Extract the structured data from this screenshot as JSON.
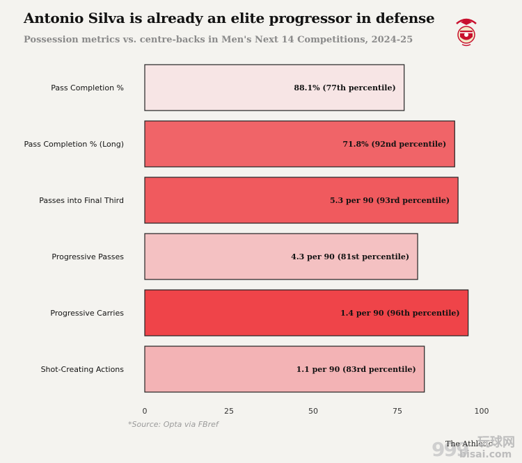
{
  "header": {
    "title": "Antonio Silva is already an elite progressor in defense",
    "subtitle": "Possession metrics vs. centre-backs in Men's Next 14 Competitions, 2024-25"
  },
  "footer": {
    "source": "*Source: Opta via FBref",
    "brand": "The Athletic",
    "watermark_site": "bisai.com",
    "watermark_cn": "玩球网",
    "watermark_num": "999"
  },
  "colors": {
    "background": "#f4f3ef",
    "bar_stroke": "#222222",
    "low": "#fbe8e8",
    "high": "#ef3f45"
  },
  "chart_data": {
    "type": "bar",
    "orientation": "horizontal",
    "title": "Antonio Silva is already an elite progressor in defense",
    "subtitle": "Possession metrics vs. centre-backs in Men's Next 14 Competitions, 2024-25",
    "xlabel": "",
    "ylabel": "",
    "xlim": [
      0,
      100
    ],
    "x_ticks": [
      0,
      25,
      50,
      75,
      100
    ],
    "grid": false,
    "categories": [
      "Pass Completion %",
      "Pass Completion % (Long)",
      "Passes into Final Third",
      "Progressive Passes",
      "Progressive Carries",
      "Shot-Creating Actions"
    ],
    "values": [
      77,
      92,
      93,
      81,
      96,
      83
    ],
    "labels": [
      "88.1% (77th percentile)",
      "71.8% (92nd percentile)",
      "5.3 per 90 (93rd percentile)",
      "4.3 per 90 (81st percentile)",
      "1.4 per 90 (96th percentile)",
      "1.1 per 90 (83rd percentile)"
    ],
    "bar_colors": [
      "#f7e5e5",
      "#f06468",
      "#f05a5e",
      "#f4c1c2",
      "#ef4449",
      "#f3b3b5"
    ]
  }
}
